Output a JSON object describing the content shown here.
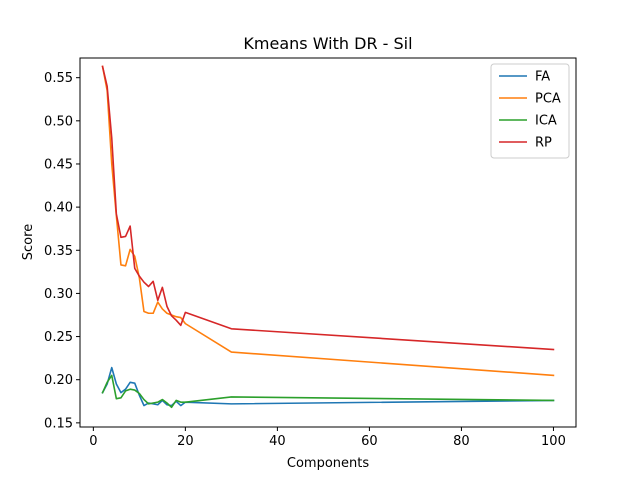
{
  "chart_data": {
    "type": "line",
    "title": "Kmeans With DR - Sil",
    "xlabel": "Components",
    "ylabel": "Score",
    "xlim": [
      -2.9,
      104.9
    ],
    "ylim": [
      0.1452,
      0.5728
    ],
    "xticks": [
      0,
      20,
      40,
      60,
      80,
      100
    ],
    "xtick_labels": [
      "0",
      "20",
      "40",
      "60",
      "80",
      "100"
    ],
    "yticks": [
      0.15,
      0.2,
      0.25,
      0.3,
      0.35,
      0.4,
      0.45,
      0.5,
      0.55
    ],
    "ytick_labels": [
      "0.15",
      "0.20",
      "0.25",
      "0.30",
      "0.35",
      "0.40",
      "0.45",
      "0.50",
      "0.55"
    ],
    "grid": false,
    "legend_position": "top-right",
    "x": [
      2,
      3,
      4,
      5,
      6,
      7,
      8,
      9,
      10,
      11,
      12,
      13,
      14,
      15,
      16,
      17,
      18,
      19,
      20,
      30,
      100
    ],
    "series": [
      {
        "name": "FA",
        "color": "#1f77b4",
        "values": [
          0.185,
          0.195,
          0.214,
          0.195,
          0.185,
          0.189,
          0.197,
          0.196,
          0.182,
          0.17,
          0.173,
          0.172,
          0.171,
          0.176,
          0.171,
          0.17,
          0.175,
          0.17,
          0.174,
          0.172,
          0.176
        ]
      },
      {
        "name": "PCA",
        "color": "#ff7f0e",
        "values": [
          0.563,
          0.535,
          0.45,
          0.39,
          0.333,
          0.332,
          0.351,
          0.343,
          0.318,
          0.279,
          0.277,
          0.277,
          0.29,
          0.282,
          0.277,
          0.275,
          0.273,
          0.272,
          0.265,
          0.232,
          0.205
        ]
      },
      {
        "name": "ICA",
        "color": "#2ca02c",
        "values": [
          0.185,
          0.197,
          0.205,
          0.178,
          0.179,
          0.187,
          0.189,
          0.188,
          0.184,
          0.177,
          0.172,
          0.173,
          0.174,
          0.177,
          0.173,
          0.168,
          0.176,
          0.174,
          0.174,
          0.18,
          0.176
        ]
      },
      {
        "name": "RP",
        "color": "#d62728",
        "values": [
          0.563,
          0.54,
          0.48,
          0.392,
          0.365,
          0.366,
          0.378,
          0.329,
          0.32,
          0.313,
          0.308,
          0.314,
          0.292,
          0.307,
          0.285,
          0.274,
          0.269,
          0.263,
          0.278,
          0.259,
          0.235
        ]
      }
    ]
  }
}
